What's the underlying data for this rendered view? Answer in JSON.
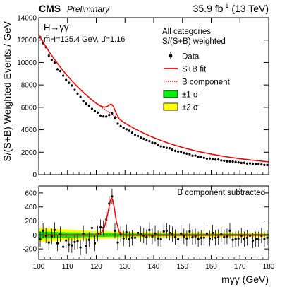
{
  "header": {
    "experiment": "CMS",
    "status": "Preliminary",
    "lumi_value": "35.9 fb",
    "lumi_exp": "-1",
    "lumi_energy": " (13 TeV)"
  },
  "annotations": {
    "process": "H→γγ",
    "fit_result": "m̂H=125.4 GeV, μ̂=1.16",
    "categories_line1": "All categories",
    "categories_line2": "S/(S+B) weighted",
    "lower_panel_label": "B component subtracted"
  },
  "axes": {
    "ylabel_top": "S/(S+B) Weighted Events / GeV",
    "xlabel": "mγγ (GeV)",
    "xlim": [
      100,
      180
    ],
    "ylim_top": [
      0,
      14000
    ],
    "ylim_bottom": [
      -350,
      700
    ],
    "x_ticks": [
      100,
      110,
      120,
      130,
      140,
      150,
      160,
      170,
      180
    ],
    "y_ticks_top": [
      0,
      2000,
      4000,
      6000,
      8000,
      10000,
      12000,
      14000
    ],
    "y_ticks_bottom": [
      -200,
      0,
      200,
      400,
      600
    ]
  },
  "legend": [
    {
      "label": "Data",
      "kind": "marker"
    },
    {
      "label": "S+B fit",
      "kind": "solid-line",
      "color": "#ee0000"
    },
    {
      "label": "B component",
      "kind": "dotted-line",
      "color": "#ee0000"
    },
    {
      "label": "±1 σ",
      "kind": "box",
      "color": "#00ee00"
    },
    {
      "label": "±2 σ",
      "kind": "box",
      "color": "#ffff00"
    }
  ],
  "colors": {
    "signal_fit": "#ee0000",
    "background_fit": "#ee0000",
    "band_1sigma": "#00ee00",
    "band_2sigma": "#ffff00",
    "data": "#000000"
  },
  "chart_data": [
    {
      "type": "scatter",
      "panel": "top",
      "title": "",
      "xlabel": "",
      "ylabel": "S/(S+B) Weighted Events / GeV",
      "xlim": [
        100,
        180
      ],
      "ylim": [
        0,
        14000
      ],
      "series": [
        {
          "name": "Data",
          "x": [
            100.5,
            101.5,
            102.5,
            103.5,
            104.5,
            105.5,
            106.5,
            107.5,
            108.5,
            109.5,
            110.5,
            111.5,
            112.5,
            113.5,
            114.5,
            115.5,
            116.5,
            117.5,
            118.5,
            119.5,
            120.5,
            121.5,
            122.5,
            123.5,
            124.5,
            125.5,
            126.5,
            127.5,
            128.5,
            129.5,
            130.5,
            131.5,
            132.5,
            133.5,
            134.5,
            135.5,
            136.5,
            137.5,
            138.5,
            139.5,
            140.5,
            141.5,
            142.5,
            143.5,
            144.5,
            145.5,
            146.5,
            147.5,
            148.5,
            149.5,
            150.5,
            151.5,
            152.5,
            153.5,
            154.5,
            155.5,
            156.5,
            157.5,
            158.5,
            159.5,
            160.5,
            161.5,
            162.5,
            163.5,
            164.5,
            165.5,
            166.5,
            167.5,
            168.5,
            169.5,
            170.5,
            171.5,
            172.5,
            173.5,
            174.5,
            175.5,
            176.5,
            177.5,
            178.5,
            179.5
          ],
          "y": [
            12250,
            11720,
            11370,
            10620,
            10230,
            9980,
            9400,
            9240,
            8830,
            8440,
            8190,
            7950,
            7560,
            7230,
            6920,
            6560,
            6320,
            6150,
            5870,
            5670,
            5530,
            5270,
            5190,
            5180,
            5320,
            5460,
            5020,
            4540,
            4340,
            4180,
            4040,
            3910,
            3740,
            3560,
            3440,
            3300,
            3190,
            3060,
            2990,
            2850,
            2800,
            2670,
            2520,
            2460,
            2380,
            2360,
            2230,
            2120,
            2060,
            2040,
            1930,
            1880,
            1820,
            1690,
            1700,
            1580,
            1570,
            1500,
            1430,
            1440,
            1380,
            1340,
            1350,
            1270,
            1240,
            1190,
            1180,
            1170,
            1130,
            1090,
            1040,
            1060,
            990,
            1010,
            980,
            940,
            950,
            910,
            860,
            860
          ],
          "yerr": 110
        },
        {
          "name": "S+B fit",
          "x": [
            100,
            102,
            104,
            106,
            108,
            110,
            112,
            114,
            116,
            118,
            120,
            121,
            122,
            123,
            124,
            124.5,
            125,
            125.5,
            126,
            126.5,
            127,
            128,
            129,
            130,
            132,
            134,
            136,
            138,
            140,
            145,
            150,
            155,
            160,
            165,
            170,
            175,
            180
          ],
          "y": [
            12460,
            11600,
            10810,
            10090,
            9420,
            8800,
            8230,
            7700,
            7220,
            6770,
            6360,
            6200,
            6070,
            6010,
            6100,
            6200,
            6280,
            6240,
            6040,
            5750,
            5450,
            4970,
            4750,
            4590,
            4290,
            4010,
            3760,
            3520,
            3300,
            2810,
            2420,
            2090,
            1830,
            1600,
            1420,
            1270,
            1140
          ]
        },
        {
          "name": "B component",
          "x": [
            100,
            102,
            104,
            106,
            108,
            110,
            112,
            114,
            116,
            118,
            120,
            122,
            124,
            126,
            128,
            130,
            132,
            134,
            136,
            138,
            140,
            145,
            150,
            155,
            160,
            165,
            170,
            175,
            180
          ],
          "y": [
            12460,
            11600,
            10810,
            10090,
            9420,
            8800,
            8230,
            7700,
            7220,
            6770,
            6360,
            5980,
            5620,
            5290,
            4980,
            4590,
            4290,
            4010,
            3760,
            3520,
            3300,
            2810,
            2420,
            2090,
            1830,
            1600,
            1420,
            1270,
            1140
          ]
        }
      ]
    },
    {
      "type": "scatter",
      "panel": "bottom",
      "title": "",
      "xlabel": "mγγ (GeV)",
      "ylabel": "",
      "xlim": [
        100,
        180
      ],
      "ylim": [
        -350,
        700
      ],
      "series": [
        {
          "name": "Data",
          "x": [
            100.5,
            101.5,
            102.5,
            103.5,
            104.5,
            105.5,
            106.5,
            107.5,
            108.5,
            109.5,
            110.5,
            111.5,
            112.5,
            113.5,
            114.5,
            115.5,
            116.5,
            117.5,
            118.5,
            119.5,
            120.5,
            121.5,
            122.5,
            123.5,
            124.5,
            125.5,
            126.5,
            127.5,
            128.5,
            129.5,
            130.5,
            131.5,
            132.5,
            133.5,
            134.5,
            135.5,
            136.5,
            137.5,
            138.5,
            139.5,
            140.5,
            141.5,
            142.5,
            143.5,
            144.5,
            145.5,
            146.5,
            147.5,
            148.5,
            149.5,
            150.5,
            151.5,
            152.5,
            153.5,
            154.5,
            155.5,
            156.5,
            157.5,
            158.5,
            159.5,
            160.5,
            161.5,
            162.5,
            163.5,
            164.5,
            165.5,
            166.5,
            167.5,
            168.5,
            169.5,
            170.5,
            171.5,
            172.5,
            173.5,
            174.5,
            175.5,
            176.5,
            177.5,
            178.5,
            179.5
          ],
          "y": [
            -60,
            60,
            -10,
            -110,
            -20,
            70,
            -120,
            10,
            -170,
            -80,
            -140,
            -150,
            -100,
            -90,
            -180,
            20,
            -160,
            -70,
            100,
            -120,
            20,
            110,
            100,
            220,
            450,
            550,
            60,
            -110,
            10,
            -50,
            40,
            -60,
            -40,
            -40,
            30,
            10,
            -10,
            -30,
            70,
            -20,
            20,
            -50,
            -60,
            50,
            60,
            30,
            10,
            -30,
            -60,
            20,
            -20,
            -50,
            50,
            -30,
            -20,
            -60,
            -40,
            -40,
            20,
            -50,
            30,
            -40,
            -30,
            10,
            -30,
            -20,
            60,
            -70,
            -60,
            -50,
            -10,
            -60,
            -40,
            -10,
            -80,
            -60,
            -60,
            -10,
            -60,
            -40
          ],
          "yerr": 110
        },
        {
          "name": "S+B fit",
          "x": [
            100,
            120,
            121,
            122,
            123,
            124,
            124.5,
            125,
            125.4,
            125.8,
            126.3,
            127,
            128,
            129,
            130,
            180
          ],
          "y": [
            0,
            0,
            10,
            40,
            130,
            300,
            410,
            500,
            530,
            490,
            380,
            190,
            40,
            5,
            0,
            0
          ]
        },
        {
          "name": "±1 σ",
          "x": [
            100,
            110,
            120,
            130,
            140,
            150,
            160,
            170,
            180
          ],
          "y_low": [
            -50,
            -38,
            -28,
            -22,
            -19,
            -17,
            -16,
            -15,
            -14
          ],
          "y_high": [
            50,
            38,
            28,
            22,
            19,
            17,
            16,
            15,
            14
          ]
        },
        {
          "name": "±2 σ",
          "x": [
            100,
            110,
            120,
            130,
            140,
            150,
            160,
            170,
            180
          ],
          "y_low": [
            -100,
            -76,
            -56,
            -44,
            -38,
            -34,
            -32,
            -30,
            -28
          ],
          "y_high": [
            100,
            76,
            56,
            44,
            38,
            34,
            32,
            30,
            28
          ]
        }
      ]
    }
  ]
}
